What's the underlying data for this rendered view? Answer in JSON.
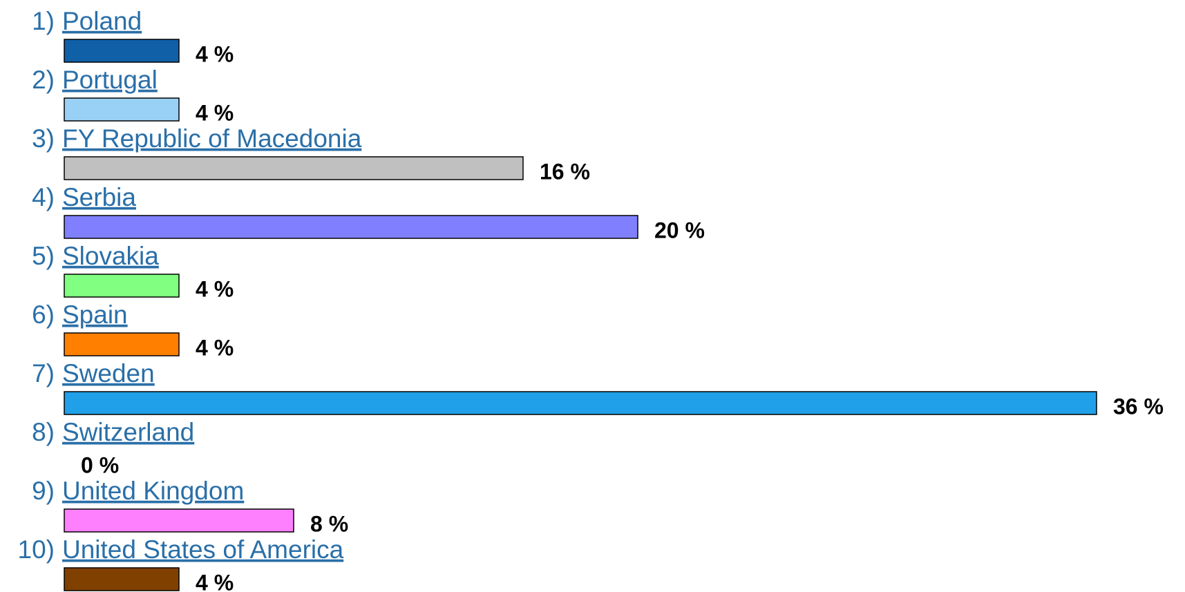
{
  "chart_data": {
    "type": "bar",
    "ranks": [
      "1)",
      "2)",
      "3)",
      "4)",
      "5)",
      "6)",
      "7)",
      "8)",
      "9)",
      "10)"
    ],
    "categories": [
      "Poland",
      "Portugal",
      "FY Republic of Macedonia",
      "Serbia",
      "Slovakia",
      "Spain",
      "Sweden",
      "Switzerland",
      "United Kingdom",
      "United States of America"
    ],
    "values": [
      4,
      4,
      16,
      20,
      4,
      4,
      36,
      0,
      8,
      4
    ],
    "value_labels": [
      "4 %",
      "4 %",
      "16 %",
      "20 %",
      "4 %",
      "4 %",
      "36 %",
      "0 %",
      "8 %",
      "4 %"
    ],
    "colors": [
      "#1060a8",
      "#99d0f5",
      "#c0c0c0",
      "#8080ff",
      "#80ff80",
      "#ff8000",
      "#20a0e8",
      null,
      "#ff80ff",
      "#804000"
    ]
  }
}
